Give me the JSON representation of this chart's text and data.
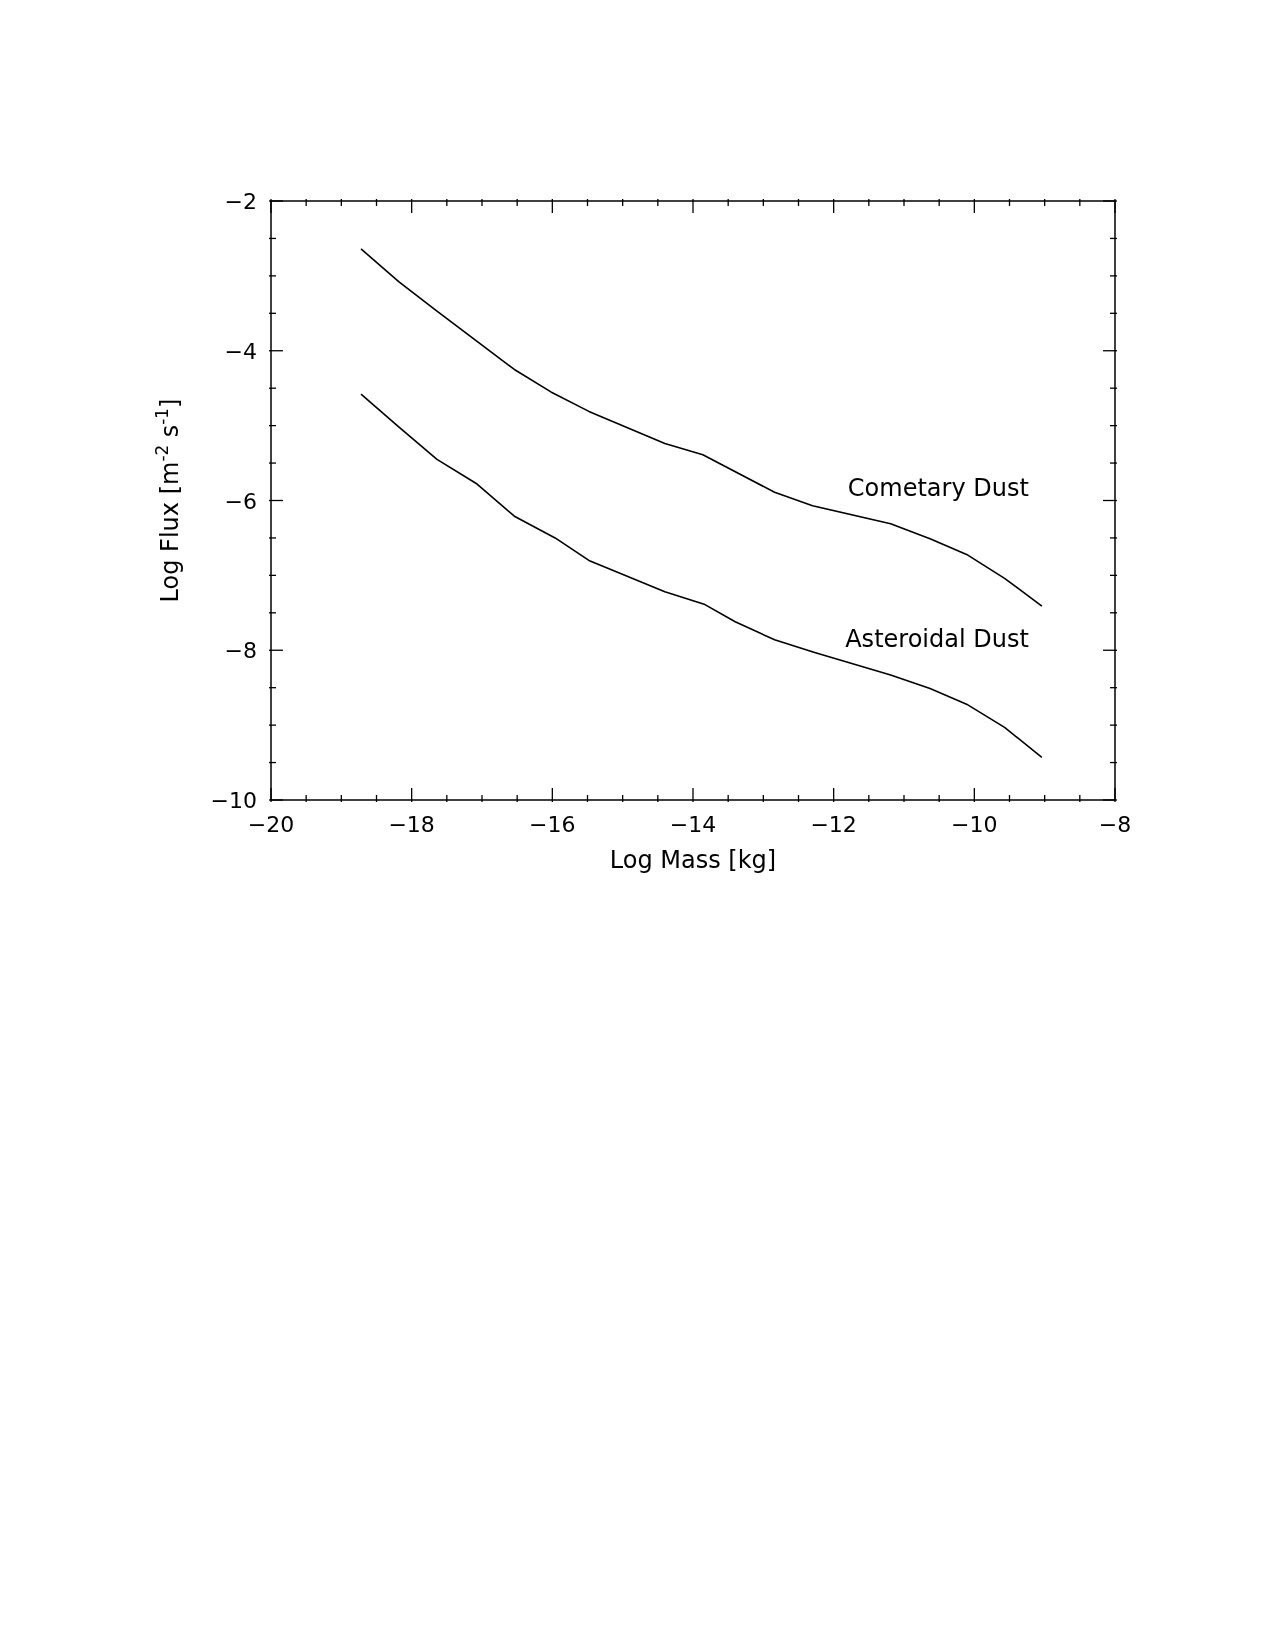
{
  "chart_data": {
    "type": "line",
    "xlabel": "Log Mass [kg]",
    "ylabel": "Log Flux [m$^{-2}$ s$^{-1}$]",
    "xlim": [
      -20,
      -8
    ],
    "ylim": [
      -10,
      -2
    ],
    "xticks": [
      -20,
      {
        "value": -19.5,
        "label": null
      },
      {
        "value": -19,
        "label": null
      },
      {
        "value": -18.5,
        "label": null
      },
      -18,
      {
        "value": -17.5,
        "label": null
      },
      {
        "value": -17,
        "label": null
      },
      {
        "value": -16.5,
        "label": null
      },
      -16,
      {
        "value": -15.5,
        "label": null
      },
      {
        "value": -15,
        "label": null
      },
      {
        "value": -14.5,
        "label": null
      },
      -14,
      {
        "value": -13.5,
        "label": null
      },
      {
        "value": -13,
        "label": null
      },
      {
        "value": -12.5,
        "label": null
      },
      -12,
      {
        "value": -11.5,
        "label": null
      },
      {
        "value": -11,
        "label": null
      },
      {
        "value": -10.5,
        "label": null
      },
      -10,
      {
        "value": -9.5,
        "label": null
      },
      {
        "value": -9,
        "label": null
      },
      {
        "value": -8.5,
        "label": null
      },
      -8
    ],
    "yticks": [
      -10,
      {
        "value": -9.5,
        "label": null
      },
      {
        "value": -9,
        "label": null
      },
      {
        "value": -8.5,
        "label": null
      },
      -8,
      {
        "value": -7.5,
        "label": null
      },
      {
        "value": -7,
        "label": null
      },
      {
        "value": -6.5,
        "label": null
      },
      -6,
      {
        "value": -5.5,
        "label": null
      },
      {
        "value": -5,
        "label": null
      },
      {
        "value": -4.5,
        "label": null
      },
      -4,
      {
        "value": -3.5,
        "label": null
      },
      {
        "value": -3,
        "label": null
      },
      {
        "value": -2.5,
        "label": null
      },
      -2
    ],
    "marker": "none",
    "line_style": "solid",
    "series": [
      {
        "name": "Cometary Dust",
        "color": "#000000",
        "x": [
          -18.72,
          -18.18,
          -17.64,
          -16.54,
          -16.02,
          -15.48,
          -14.4,
          -13.86,
          -12.84,
          -12.3,
          -11.19,
          -10.63,
          -10.11,
          -9.57,
          -9.04
        ],
        "values": [
          -2.64,
          -3.08,
          -3.47,
          -4.25,
          -4.55,
          -4.81,
          -5.24,
          -5.39,
          -5.89,
          -6.07,
          -6.31,
          -6.51,
          -6.72,
          -7.04,
          -7.41
        ]
      },
      {
        "name": "Asteroidal Dust",
        "color": "#000000",
        "x": [
          -18.72,
          -18.18,
          -17.64,
          -17.07,
          -16.54,
          -15.96,
          -15.48,
          -14.4,
          -13.83,
          -13.4,
          -12.84,
          -12.27,
          -11.19,
          -10.63,
          -10.11,
          -9.57,
          -9.04
        ],
        "values": [
          -4.58,
          -5.02,
          -5.45,
          -5.78,
          -6.21,
          -6.5,
          -6.8,
          -7.22,
          -7.39,
          -7.62,
          -7.86,
          -8.03,
          -8.33,
          -8.51,
          -8.72,
          -9.03,
          -9.43
        ]
      }
    ]
  }
}
